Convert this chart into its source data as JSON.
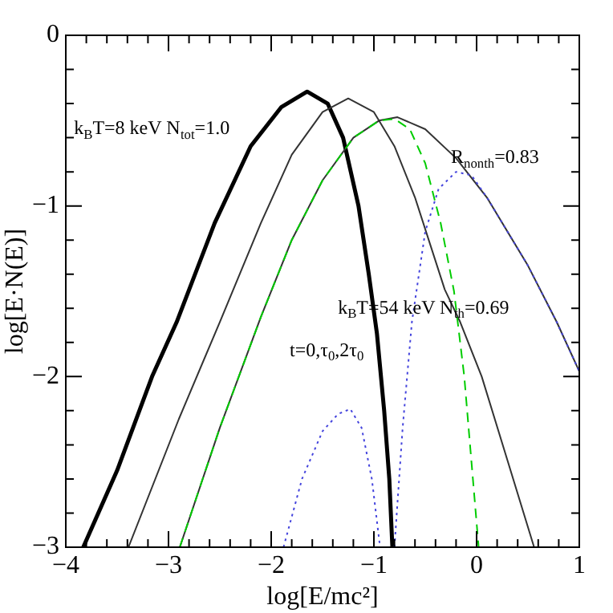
{
  "chart_data": {
    "type": "line",
    "xlabel": "log[E/mc²]",
    "ylabel": "log[E·N(E)]",
    "xlim": [
      -4,
      1
    ],
    "ylim": [
      -3,
      0
    ],
    "xticks": [
      -4,
      {
        "value": -3.8,
        "label": null
      },
      {
        "value": -3.6,
        "label": null
      },
      {
        "value": -3.4,
        "label": null
      },
      {
        "value": -3.2,
        "label": null
      },
      -3,
      {
        "value": -2.8,
        "label": null
      },
      {
        "value": -2.6,
        "label": null
      },
      {
        "value": -2.4,
        "label": null
      },
      {
        "value": -2.2,
        "label": null
      },
      -2,
      {
        "value": -1.8,
        "label": null
      },
      {
        "value": -1.6,
        "label": null
      },
      {
        "value": -1.4,
        "label": null
      },
      {
        "value": -1.2,
        "label": null
      },
      -1,
      {
        "value": -0.8,
        "label": null
      },
      {
        "value": -0.6,
        "label": null
      },
      {
        "value": -0.4,
        "label": null
      },
      {
        "value": -0.2,
        "label": null
      },
      0,
      {
        "value": 0.2,
        "label": null
      },
      {
        "value": 0.4,
        "label": null
      },
      {
        "value": 0.6,
        "label": null
      },
      {
        "value": 0.8,
        "label": null
      },
      1
    ],
    "yticks": [
      -3,
      {
        "value": -2.8,
        "label": null
      },
      {
        "value": -2.6,
        "label": null
      },
      {
        "value": -2.4,
        "label": null
      },
      {
        "value": -2.2,
        "label": null
      },
      -2,
      {
        "value": -1.8,
        "label": null
      },
      {
        "value": -1.6,
        "label": null
      },
      {
        "value": -1.4,
        "label": null
      },
      {
        "value": -1.2,
        "label": null
      },
      -1,
      {
        "value": -0.8,
        "label": null
      },
      {
        "value": -0.6,
        "label": null
      },
      {
        "value": -0.4,
        "label": null
      },
      {
        "value": -0.2,
        "label": null
      },
      0
    ],
    "grid": false,
    "legend": false,
    "marker": "none",
    "series": [
      {
        "color": "#000000",
        "line_style": "solid",
        "x": [
          -3.83,
          -3.5,
          -3.16,
          -2.92,
          -2.55,
          -2.2,
          -1.9,
          -1.65,
          -1.45,
          -1.3,
          -1.15,
          -1.05,
          -0.97,
          -0.9,
          -0.85,
          -0.82
        ],
        "values": [
          -3,
          -2.55,
          -2,
          -1.68,
          -1.1,
          -0.65,
          -0.42,
          -0.33,
          -0.4,
          -0.6,
          -1.0,
          -1.4,
          -1.75,
          -2.2,
          -2.6,
          -3
        ]
      },
      {
        "color": "#333333",
        "line_style": "solid",
        "x": [
          -3.39,
          -2.9,
          -2.5,
          -2.1,
          -1.8,
          -1.5,
          -1.25,
          -1.0,
          -0.8,
          -0.6,
          -0.31,
          -0.16,
          0.05,
          0.3,
          0.56
        ],
        "values": [
          -3,
          -2.25,
          -1.68,
          -1.1,
          -0.7,
          -0.45,
          -0.37,
          -0.45,
          -0.65,
          -0.95,
          -1.49,
          -1.68,
          -2,
          -2.49,
          -3
        ]
      },
      {
        "color": "#333333",
        "line_style": "solid",
        "x": [
          -2.89,
          -2.5,
          -2.1,
          -1.8,
          -1.5,
          -1.2,
          -0.95,
          -0.77,
          -0.5,
          -0.2,
          0.1,
          0.5,
          0.78,
          1
        ],
        "values": [
          -3,
          -2.3,
          -1.65,
          -1.2,
          -0.85,
          -0.6,
          -0.5,
          -0.48,
          -0.55,
          -0.72,
          -0.95,
          -1.35,
          -1.68,
          -1.97
        ]
      },
      {
        "color": "#00cc00",
        "line_style": "dashed",
        "x": [
          -2.89,
          -2.5,
          -2.1,
          -1.8,
          -1.5,
          -1.2,
          -0.95,
          -0.8,
          -0.65,
          -0.5,
          -0.35,
          -0.22,
          -0.12,
          -0.05,
          0.02
        ],
        "values": [
          -3,
          -2.3,
          -1.65,
          -1.2,
          -0.85,
          -0.6,
          -0.5,
          -0.49,
          -0.55,
          -0.75,
          -1.1,
          -1.5,
          -2.0,
          -2.5,
          -3
        ]
      },
      {
        "color": "#4444dd",
        "line_style": "dotted",
        "x": [
          -1.88,
          -1.7,
          -1.5,
          -1.35,
          -1.23,
          -1.12,
          -1.02,
          -0.94
        ],
        "values": [
          -3,
          -2.6,
          -2.32,
          -2.22,
          -2.19,
          -2.3,
          -2.6,
          -3
        ]
      },
      {
        "color": "#4444dd",
        "line_style": "dotted",
        "x": [
          -0.8,
          -0.72,
          -0.63,
          -0.5,
          -0.37,
          -0.2,
          -0.05,
          0.1,
          0.5,
          0.78,
          1
        ],
        "values": [
          -3,
          -2.3,
          -1.68,
          -1.15,
          -0.9,
          -0.8,
          -0.82,
          -0.95,
          -1.35,
          -1.68,
          -1.97
        ]
      }
    ],
    "annotations": [
      "k$_{B}$T=8 keV N$_{tot}$=1.0",
      "R$_{nonth}$=0.83",
      "k$_{B}$T=54 keV N$_{th}$=0.69",
      "t=0,τ$_{0}$,2τ$_{0}$"
    ]
  }
}
